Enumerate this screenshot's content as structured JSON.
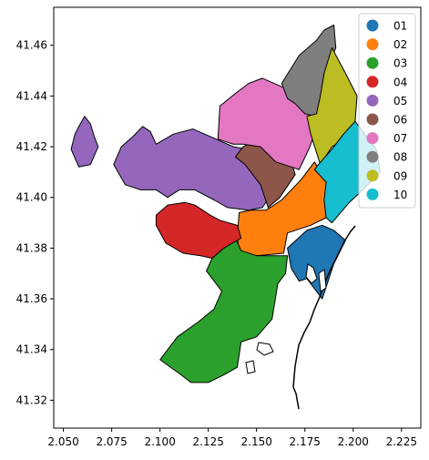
{
  "chart_data": {
    "type": "choropleth",
    "title": "",
    "xlabel": "",
    "ylabel": "",
    "xlim": [
      2.045,
      2.235
    ],
    "ylim": [
      41.309,
      41.475
    ],
    "x_ticks": [
      "2.050",
      "2.075",
      "2.100",
      "2.125",
      "2.150",
      "2.175",
      "2.200",
      "2.225"
    ],
    "y_ticks": [
      "41.32",
      "41.34",
      "41.36",
      "41.38",
      "41.40",
      "41.42",
      "41.44",
      "41.46"
    ],
    "grid": false,
    "legend_position": "top-right",
    "districts": [
      {
        "code": "01",
        "color": "#1f77b4",
        "polygon": [
          [
            2.166,
            41.38
          ],
          [
            2.176,
            41.387
          ],
          [
            2.184,
            41.389
          ],
          [
            2.19,
            41.387
          ],
          [
            2.196,
            41.383
          ],
          [
            2.19,
            41.374
          ],
          [
            2.184,
            41.36
          ],
          [
            2.176,
            41.368
          ],
          [
            2.172,
            41.367
          ],
          [
            2.168,
            41.372
          ]
        ]
      },
      {
        "code": "02",
        "color": "#ff7f0e",
        "polygon": [
          [
            2.14,
            41.385
          ],
          [
            2.141,
            41.394
          ],
          [
            2.147,
            41.395
          ],
          [
            2.155,
            41.395
          ],
          [
            2.163,
            41.399
          ],
          [
            2.173,
            41.407
          ],
          [
            2.18,
            41.414
          ],
          [
            2.187,
            41.405
          ],
          [
            2.185,
            41.399
          ],
          [
            2.186,
            41.392
          ],
          [
            2.178,
            41.389
          ],
          [
            2.166,
            41.386
          ],
          [
            2.164,
            41.378
          ],
          [
            2.15,
            41.377
          ],
          [
            2.141,
            41.378
          ]
        ]
      },
      {
        "code": "03",
        "color": "#2ca02c",
        "polygon": [
          [
            2.127,
            41.376
          ],
          [
            2.139,
            41.384
          ],
          [
            2.142,
            41.379
          ],
          [
            2.15,
            41.377
          ],
          [
            2.166,
            41.377
          ],
          [
            2.165,
            41.37
          ],
          [
            2.161,
            41.366
          ],
          [
            2.158,
            41.352
          ],
          [
            2.15,
            41.345
          ],
          [
            2.142,
            41.343
          ],
          [
            2.14,
            41.333
          ],
          [
            2.133,
            41.33
          ],
          [
            2.125,
            41.327
          ],
          [
            2.116,
            41.327
          ],
          [
            2.111,
            41.33
          ],
          [
            2.1,
            41.336
          ],
          [
            2.109,
            41.345
          ],
          [
            2.12,
            41.351
          ],
          [
            2.128,
            41.356
          ],
          [
            2.132,
            41.363
          ],
          [
            2.124,
            41.371
          ]
        ]
      },
      {
        "code": "04",
        "color": "#d62728",
        "polygon": [
          [
            2.098,
            41.393
          ],
          [
            2.104,
            41.397
          ],
          [
            2.113,
            41.398
          ],
          [
            2.118,
            41.397
          ],
          [
            2.126,
            41.393
          ],
          [
            2.131,
            41.391
          ],
          [
            2.14,
            41.389
          ],
          [
            2.142,
            41.384
          ],
          [
            2.133,
            41.38
          ],
          [
            2.127,
            41.376
          ],
          [
            2.121,
            41.377
          ],
          [
            2.112,
            41.378
          ],
          [
            2.103,
            41.382
          ],
          [
            2.098,
            41.389
          ]
        ]
      },
      {
        "code": "05",
        "color": "#9467bd",
        "polygon": [
          [
            2.098,
            41.421
          ],
          [
            2.107,
            41.425
          ],
          [
            2.117,
            41.427
          ],
          [
            2.129,
            41.423
          ],
          [
            2.138,
            41.42
          ],
          [
            2.145,
            41.419
          ],
          [
            2.155,
            41.42
          ],
          [
            2.16,
            41.414
          ],
          [
            2.16,
            41.404
          ],
          [
            2.153,
            41.396
          ],
          [
            2.146,
            41.395
          ],
          [
            2.135,
            41.396
          ],
          [
            2.128,
            41.399
          ],
          [
            2.118,
            41.403
          ],
          [
            2.11,
            41.403
          ],
          [
            2.104,
            41.4
          ],
          [
            2.098,
            41.403
          ],
          [
            2.09,
            41.403
          ],
          [
            2.082,
            41.405
          ],
          [
            2.076,
            41.413
          ],
          [
            2.08,
            41.42
          ],
          [
            2.086,
            41.424
          ],
          [
            2.091,
            41.428
          ],
          [
            2.095,
            41.426
          ]
        ]
      },
      {
        "code": "05",
        "color": "#9467bd",
        "polygon": [
          [
            2.058,
            41.428
          ],
          [
            2.061,
            41.432
          ],
          [
            2.064,
            41.429
          ],
          [
            2.066,
            41.424
          ],
          [
            2.068,
            41.42
          ],
          [
            2.064,
            41.413
          ],
          [
            2.058,
            41.412
          ],
          [
            2.054,
            41.419
          ],
          [
            2.056,
            41.425
          ]
        ]
      },
      {
        "code": "06",
        "color": "#8c564b",
        "polygon": [
          [
            2.143,
            41.42
          ],
          [
            2.152,
            41.423
          ],
          [
            2.16,
            41.421
          ],
          [
            2.168,
            41.414
          ],
          [
            2.17,
            41.409
          ],
          [
            2.162,
            41.4
          ],
          [
            2.156,
            41.396
          ],
          [
            2.152,
            41.405
          ],
          [
            2.144,
            41.413
          ],
          [
            2.139,
            41.416
          ]
        ]
      },
      {
        "code": "07",
        "color": "#e377c2",
        "polygon": [
          [
            2.13,
            41.423
          ],
          [
            2.131,
            41.436
          ],
          [
            2.139,
            41.441
          ],
          [
            2.146,
            41.445
          ],
          [
            2.153,
            41.447
          ],
          [
            2.165,
            41.443
          ],
          [
            2.175,
            41.44
          ],
          [
            2.178,
            41.432
          ],
          [
            2.18,
            41.425
          ],
          [
            2.177,
            41.419
          ],
          [
            2.172,
            41.411
          ],
          [
            2.168,
            41.412
          ],
          [
            2.16,
            41.414
          ],
          [
            2.152,
            41.42
          ],
          [
            2.143,
            41.421
          ],
          [
            2.138,
            41.421
          ]
        ]
      },
      {
        "code": "08",
        "color": "#7f7f7f",
        "polygon": [
          [
            2.163,
            41.445
          ],
          [
            2.172,
            41.456
          ],
          [
            2.181,
            41.462
          ],
          [
            2.185,
            41.466
          ],
          [
            2.19,
            41.468
          ],
          [
            2.191,
            41.459
          ],
          [
            2.186,
            41.45
          ],
          [
            2.184,
            41.443
          ],
          [
            2.181,
            41.432
          ],
          [
            2.175,
            41.433
          ],
          [
            2.17,
            41.437
          ],
          [
            2.166,
            41.439
          ]
        ]
      },
      {
        "code": "09",
        "color": "#bcbd22",
        "polygon": [
          [
            2.181,
            41.433
          ],
          [
            2.183,
            41.44
          ],
          [
            2.185,
            41.449
          ],
          [
            2.189,
            41.459
          ],
          [
            2.196,
            41.449
          ],
          [
            2.202,
            41.44
          ],
          [
            2.201,
            41.43
          ],
          [
            2.196,
            41.423
          ],
          [
            2.189,
            41.42
          ],
          [
            2.183,
            41.413
          ],
          [
            2.178,
            41.425
          ],
          [
            2.176,
            41.432
          ]
        ]
      },
      {
        "code": "10",
        "color": "#17becf",
        "polygon": [
          [
            2.182,
            41.413
          ],
          [
            2.189,
            41.419
          ],
          [
            2.195,
            41.425
          ],
          [
            2.201,
            41.43
          ],
          [
            2.212,
            41.419
          ],
          [
            2.214,
            41.41
          ],
          [
            2.205,
            41.403
          ],
          [
            2.198,
            41.398
          ],
          [
            2.189,
            41.39
          ],
          [
            2.186,
            41.392
          ],
          [
            2.185,
            41.399
          ],
          [
            2.186,
            41.406
          ],
          [
            2.18,
            41.411
          ]
        ]
      }
    ]
  },
  "legend": {
    "items": [
      {
        "code": "01",
        "color": "#1f77b4"
      },
      {
        "code": "02",
        "color": "#ff7f0e"
      },
      {
        "code": "03",
        "color": "#2ca02c"
      },
      {
        "code": "04",
        "color": "#d62728"
      },
      {
        "code": "05",
        "color": "#9467bd"
      },
      {
        "code": "06",
        "color": "#8c564b"
      },
      {
        "code": "07",
        "color": "#e377c2"
      },
      {
        "code": "08",
        "color": "#7f7f7f"
      },
      {
        "code": "09",
        "color": "#bcbd22"
      },
      {
        "code": "10",
        "color": "#17becf"
      }
    ]
  }
}
